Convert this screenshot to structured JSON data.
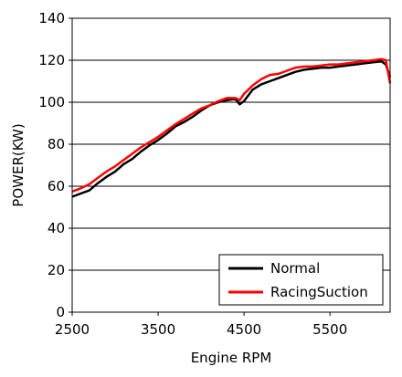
{
  "chart_data": {
    "type": "line",
    "title": "",
    "xlabel": "Engine RPM",
    "ylabel": "POWER(KW)",
    "xlim": [
      2500,
      6200
    ],
    "ylim": [
      0,
      140
    ],
    "xticks": [
      2500,
      3500,
      4500,
      5500
    ],
    "xtick_labels": [
      "2500",
      "3500",
      "4500",
      "5500"
    ],
    "yticks": [
      0,
      20,
      40,
      60,
      80,
      100,
      120,
      140
    ],
    "ytick_labels": [
      "0",
      "20",
      "40",
      "60",
      "80",
      "100",
      "120",
      "140"
    ],
    "grid": "horizontal",
    "legend_position": "bottom-right",
    "series": [
      {
        "name": "Normal",
        "color": "#000000",
        "x": [
          2500,
          2600,
          2700,
          2800,
          2900,
          3000,
          3100,
          3200,
          3300,
          3400,
          3500,
          3600,
          3700,
          3800,
          3900,
          4000,
          4100,
          4200,
          4300,
          4400,
          4450,
          4500,
          4600,
          4700,
          4800,
          4900,
          5000,
          5100,
          5200,
          5300,
          5400,
          5500,
          5600,
          5700,
          5800,
          5900,
          6000,
          6100,
          6150,
          6200
        ],
        "y": [
          55,
          56.5,
          58,
          61.5,
          64.5,
          67,
          70.5,
          73,
          76.5,
          79.5,
          82,
          85,
          88.5,
          90.5,
          93,
          96,
          98.5,
          100,
          101,
          101.5,
          99,
          100.5,
          106,
          108.5,
          110,
          111.5,
          113,
          114.5,
          115.5,
          116,
          116.5,
          116.5,
          117,
          117.5,
          118,
          118.5,
          119,
          119.5,
          118,
          112
        ]
      },
      {
        "name": "RacingSuction",
        "color": "#ff0000",
        "x": [
          2500,
          2600,
          2700,
          2800,
          2900,
          3000,
          3100,
          3200,
          3300,
          3400,
          3500,
          3600,
          3700,
          3800,
          3900,
          4000,
          4100,
          4200,
          4300,
          4400,
          4450,
          4500,
          4600,
          4700,
          4800,
          4900,
          5000,
          5100,
          5200,
          5300,
          5400,
          5500,
          5600,
          5700,
          5800,
          5900,
          6000,
          6100,
          6150,
          6200
        ],
        "y": [
          57.5,
          59,
          61,
          64,
          67,
          69.5,
          72.5,
          75.5,
          78.5,
          81,
          83.5,
          86.5,
          89.5,
          92,
          94.5,
          97,
          98.5,
          100.5,
          102,
          102,
          101,
          104,
          108,
          111,
          113,
          113.5,
          115,
          116.5,
          117,
          117,
          117.5,
          118,
          118,
          118.5,
          119,
          119.5,
          120,
          120.5,
          120,
          109
        ]
      }
    ]
  }
}
